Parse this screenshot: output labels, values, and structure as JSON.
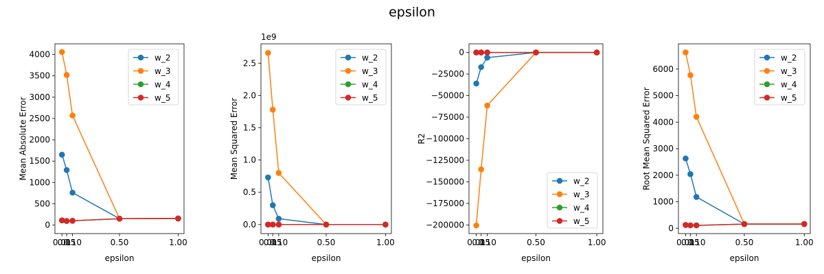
{
  "suptitle": "epsilon",
  "colors": {
    "w_2": "#1f77b4",
    "w_3": "#ff7f0e",
    "w_4": "#2ca02c",
    "w_5": "#d62728"
  },
  "chart_data": [
    {
      "type": "line",
      "xlabel": "epsilon",
      "ylabel": "Mean Absolute Error",
      "offset_text": "",
      "xlim": [
        -0.05,
        1.05
      ],
      "ylim": [
        -200,
        4250
      ],
      "xticks": [
        0.01,
        0.05,
        0.1,
        0.5,
        1.0
      ],
      "xticklabels": [
        "0.01",
        "0.05",
        "0.10",
        "0.50",
        "1.00"
      ],
      "yticks": [
        0,
        500,
        1000,
        1500,
        2000,
        2500,
        3000,
        3500,
        4000
      ],
      "yticklabels": [
        "0",
        "500",
        "1000",
        "1500",
        "2000",
        "2500",
        "3000",
        "3500",
        "4000"
      ],
      "legend_loc": "upper right",
      "x": [
        0.01,
        0.05,
        0.1,
        0.5,
        1.0
      ],
      "series": [
        {
          "name": "w_2",
          "values": [
            1650,
            1290,
            760,
            150,
            155
          ]
        },
        {
          "name": "w_3",
          "values": [
            4060,
            3520,
            2570,
            150,
            155
          ]
        },
        {
          "name": "w_4",
          "values": [
            110,
            95,
            100,
            150,
            155
          ]
        },
        {
          "name": "w_5",
          "values": [
            110,
            95,
            100,
            150,
            155
          ]
        }
      ]
    },
    {
      "type": "line",
      "xlabel": "epsilon",
      "ylabel": "Mean Squared Error",
      "offset_text": "1e9",
      "xlim": [
        -0.05,
        1.05
      ],
      "ylim": [
        -0.14,
        2.8
      ],
      "xticks": [
        0.01,
        0.05,
        0.1,
        0.5,
        1.0
      ],
      "xticklabels": [
        "0.01",
        "0.05",
        "0.10",
        "0.50",
        "1.00"
      ],
      "yticks": [
        0,
        0.5,
        1.0,
        1.5,
        2.0,
        2.5
      ],
      "yticklabels": [
        "0.0",
        "0.5",
        "1.0",
        "1.5",
        "2.0",
        "2.5"
      ],
      "legend_loc": "upper right",
      "x": [
        0.01,
        0.05,
        0.1,
        0.5,
        1.0
      ],
      "series": [
        {
          "name": "w_2",
          "values": [
            0.73,
            0.3,
            0.09,
            0.0,
            0.0
          ]
        },
        {
          "name": "w_3",
          "values": [
            2.66,
            1.78,
            0.8,
            0.0,
            0.0
          ]
        },
        {
          "name": "w_4",
          "values": [
            0.0,
            0.0,
            0.0,
            0.0,
            0.0
          ]
        },
        {
          "name": "w_5",
          "values": [
            0.0,
            0.0,
            0.0,
            0.0,
            0.0
          ]
        }
      ]
    },
    {
      "type": "line",
      "xlabel": "epsilon",
      "ylabel": "R2",
      "offset_text": "",
      "xlim": [
        -0.05,
        1.05
      ],
      "ylim": [
        -210000,
        10000
      ],
      "xticks": [
        0.01,
        0.05,
        0.1,
        0.5,
        1.0
      ],
      "xticklabels": [
        "0.01",
        "0.05",
        "0.10",
        "0.50",
        "1.00"
      ],
      "yticks": [
        0,
        -25000,
        -50000,
        -75000,
        -100000,
        -125000,
        -150000,
        -175000,
        -200000
      ],
      "yticklabels": [
        "0",
        "−25000",
        "−50000",
        "−75000",
        "−100000",
        "−125000",
        "−150000",
        "−175000",
        "−200000"
      ],
      "legend_loc": "lower right",
      "x": [
        0.01,
        0.05,
        0.1,
        0.5,
        1.0
      ],
      "series": [
        {
          "name": "w_2",
          "values": [
            -36000,
            -17000,
            -6000,
            0,
            0
          ]
        },
        {
          "name": "w_3",
          "values": [
            -200500,
            -135500,
            -61500,
            0,
            0
          ]
        },
        {
          "name": "w_4",
          "values": [
            0,
            0,
            0,
            0,
            0
          ]
        },
        {
          "name": "w_5",
          "values": [
            0,
            0,
            0,
            0,
            0
          ]
        }
      ]
    },
    {
      "type": "line",
      "xlabel": "epsilon",
      "ylabel": "Root Mean Squared Error",
      "offset_text": "",
      "xlim": [
        -0.05,
        1.05
      ],
      "ylim": [
        -200,
        6950
      ],
      "xticks": [
        0.01,
        0.05,
        0.1,
        0.5,
        1.0
      ],
      "xticklabels": [
        "0.01",
        "0.05",
        "0.10",
        "0.50",
        "1.00"
      ],
      "yticks": [
        0,
        1000,
        2000,
        3000,
        4000,
        5000,
        6000
      ],
      "yticklabels": [
        "0",
        "1000",
        "2000",
        "3000",
        "4000",
        "5000",
        "6000"
      ],
      "legend_loc": "upper right",
      "x": [
        0.01,
        0.05,
        0.1,
        0.5,
        1.0
      ],
      "series": [
        {
          "name": "w_2",
          "values": [
            2630,
            2040,
            1180,
            160,
            160
          ]
        },
        {
          "name": "w_3",
          "values": [
            6630,
            5770,
            4200,
            160,
            160
          ]
        },
        {
          "name": "w_4",
          "values": [
            125,
            110,
            110,
            160,
            160
          ]
        },
        {
          "name": "w_5",
          "values": [
            125,
            110,
            110,
            160,
            160
          ]
        }
      ]
    }
  ]
}
